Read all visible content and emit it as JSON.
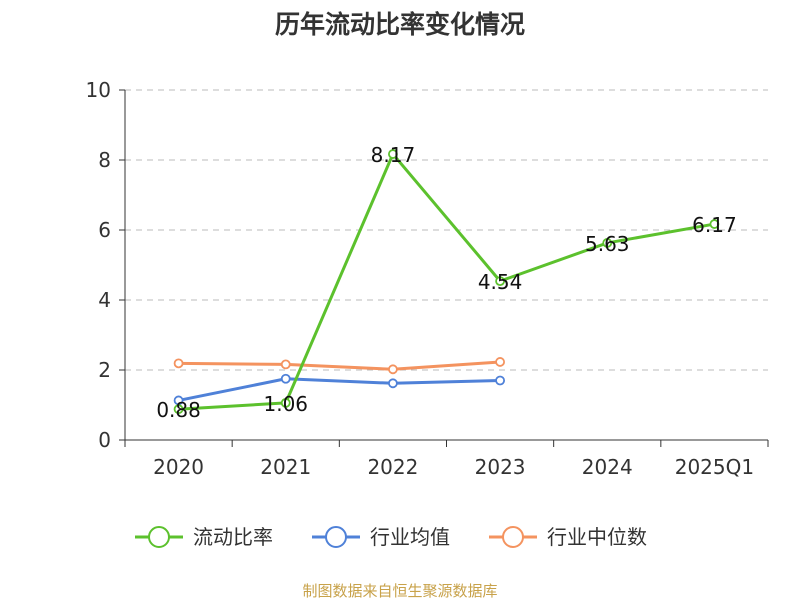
{
  "chart_data": {
    "type": "line",
    "title": "历年流动比率变化情况",
    "categories": [
      "2020",
      "2021",
      "2022",
      "2023",
      "2024",
      "2025Q1"
    ],
    "ylim": [
      0,
      10
    ],
    "yticks": [
      "0",
      "2",
      "4",
      "6",
      "8",
      "10"
    ],
    "grid": true,
    "legend_position": "bottom",
    "series": [
      {
        "name": "流动比率",
        "color": "#5cc12d",
        "values": [
          0.88,
          1.06,
          8.17,
          4.54,
          5.63,
          6.17
        ],
        "labels": [
          "0.88",
          "1.06",
          "8.17",
          "4.54",
          "5.63",
          "6.17"
        ]
      },
      {
        "name": "行业均值",
        "color": "#4f81d8",
        "values": [
          1.13,
          1.75,
          1.62,
          1.7,
          null,
          null
        ]
      },
      {
        "name": "行业中位数",
        "color": "#f4935f",
        "values": [
          2.19,
          2.16,
          2.02,
          2.23,
          null,
          null
        ]
      }
    ]
  },
  "source": "制图数据来自恒生聚源数据库"
}
